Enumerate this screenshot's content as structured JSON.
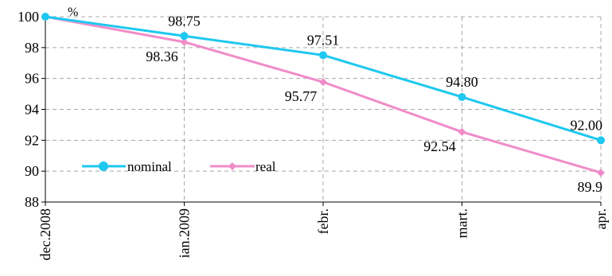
{
  "chart_data": {
    "type": "line",
    "categories": [
      "dec.2008",
      "ian.2009",
      "febr.",
      "mart.",
      "apr."
    ],
    "series": [
      {
        "name": "nominal",
        "color": "#1EC8F0",
        "values": [
          100,
          98.75,
          97.51,
          94.8,
          92.0
        ],
        "labels": [
          "",
          "98.75",
          "97.51",
          "94.80",
          "92.00"
        ]
      },
      {
        "name": "real",
        "color": "#F08CC8",
        "values": [
          100,
          98.36,
          95.77,
          92.54,
          89.9
        ],
        "labels": [
          "",
          "98.36",
          "95.77",
          "92.54",
          "89.9"
        ]
      }
    ],
    "unit": "%",
    "ylim": [
      88,
      100
    ],
    "yticks": [
      "88",
      "90",
      "92",
      "94",
      "96",
      "98",
      "100"
    ],
    "grid": true,
    "legend": "bottom-left"
  }
}
